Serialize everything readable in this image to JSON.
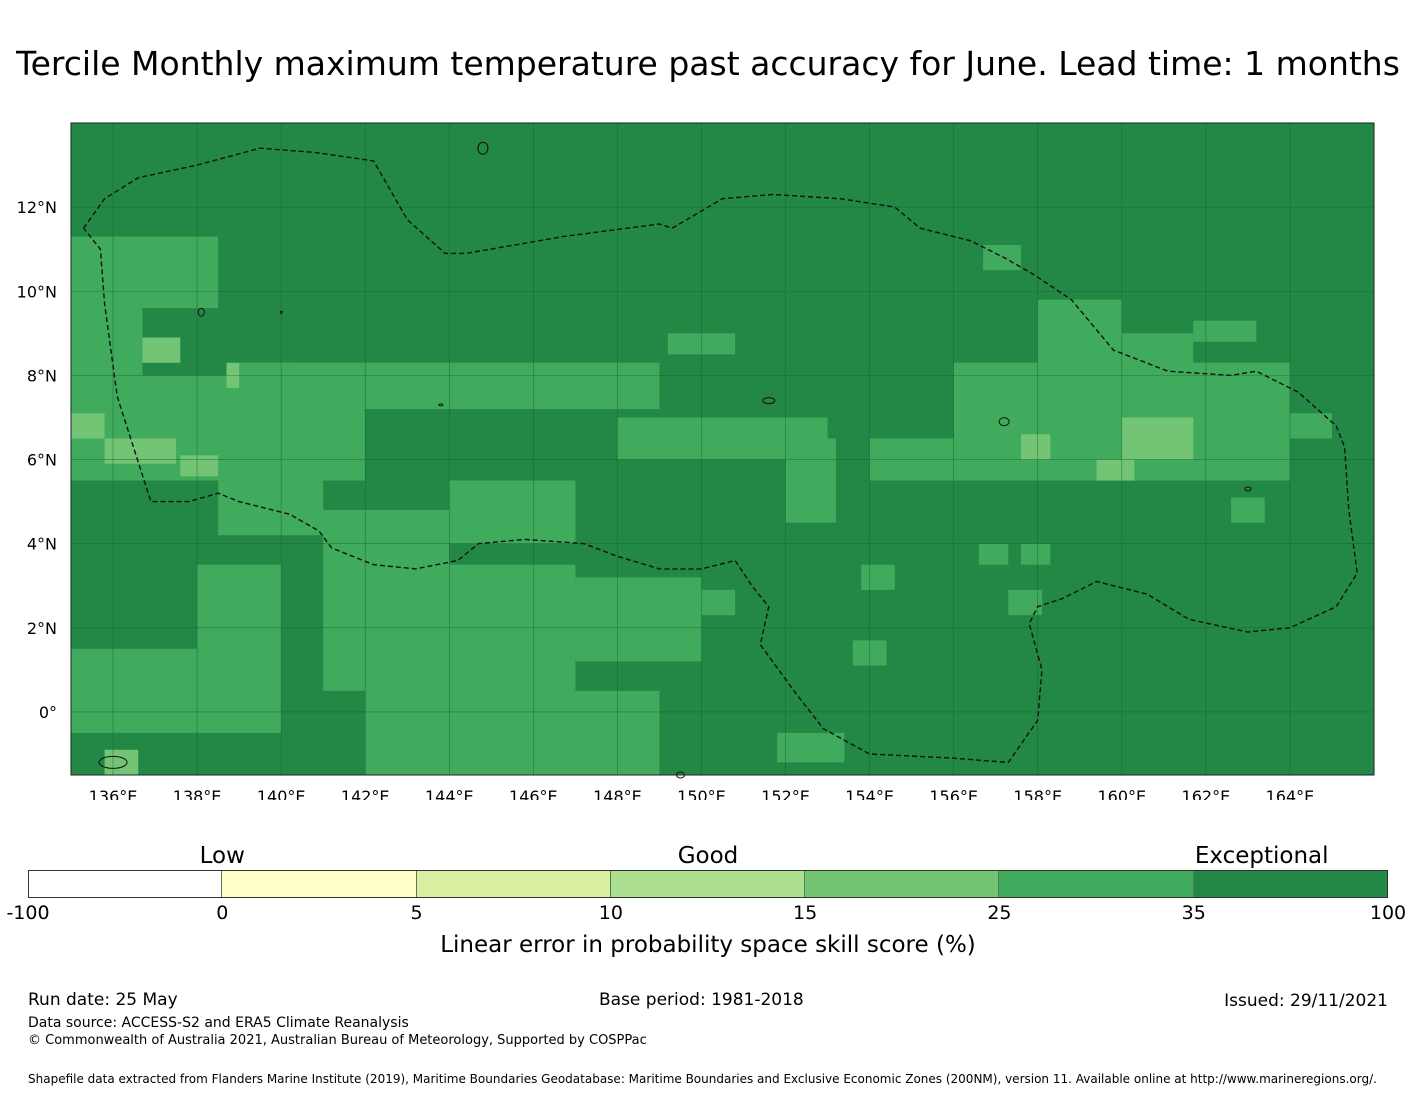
{
  "title": "Tercile Monthly maximum temperature past accuracy for June. Lead time: 1 months",
  "map": {
    "lon_range": [
      135,
      166
    ],
    "lat_range": [
      -1.5,
      14
    ],
    "lat_ticks": [
      {
        "value": 12,
        "label": "12°N"
      },
      {
        "value": 10,
        "label": "10°N"
      },
      {
        "value": 8,
        "label": "8°N"
      },
      {
        "value": 6,
        "label": "6°N"
      },
      {
        "value": 4,
        "label": "4°N"
      },
      {
        "value": 2,
        "label": "2°N"
      },
      {
        "value": 0,
        "label": "0°"
      }
    ],
    "lon_ticks": [
      {
        "value": 136,
        "label": "136°E"
      },
      {
        "value": 138,
        "label": "138°E"
      },
      {
        "value": 140,
        "label": "140°E"
      },
      {
        "value": 142,
        "label": "142°E"
      },
      {
        "value": 144,
        "label": "144°E"
      },
      {
        "value": 146,
        "label": "146°E"
      },
      {
        "value": 148,
        "label": "148°E"
      },
      {
        "value": 150,
        "label": "150°E"
      },
      {
        "value": 152,
        "label": "152°E"
      },
      {
        "value": 154,
        "label": "154°E"
      },
      {
        "value": 156,
        "label": "156°E"
      },
      {
        "value": 158,
        "label": "158°E"
      },
      {
        "value": 160,
        "label": "160°E"
      },
      {
        "value": 162,
        "label": "162°E"
      },
      {
        "value": 164,
        "label": "164°E"
      }
    ],
    "colors": {
      "exceptional": "#238845",
      "high": "#40ab5d",
      "mid": "#74c476",
      "good": "#addf91",
      "low": "#d9f0a3",
      "very_low": "#ffffcc",
      "none": "#ffffff"
    },
    "default_class": "exceptional",
    "cell_patches": [
      {
        "lon": [
          135,
          138.5
        ],
        "lat": [
          9.6,
          11.3
        ],
        "cls": "high"
      },
      {
        "lon": [
          135,
          136.7
        ],
        "lat": [
          8.0,
          9.6
        ],
        "cls": "high"
      },
      {
        "lon": [
          135,
          140
        ],
        "lat": [
          7.0,
          8.0
        ],
        "cls": "high"
      },
      {
        "lon": [
          135,
          141
        ],
        "lat": [
          5.5,
          7.0
        ],
        "cls": "high"
      },
      {
        "lon": [
          136.7,
          137.6
        ],
        "lat": [
          8.3,
          8.9
        ],
        "cls": "mid"
      },
      {
        "lon": [
          138.7,
          140.4
        ],
        "lat": [
          7.7,
          8.3
        ],
        "cls": "mid"
      },
      {
        "lon": [
          135,
          135.8
        ],
        "lat": [
          6.5,
          7.1
        ],
        "cls": "mid"
      },
      {
        "lon": [
          135.8,
          137.5
        ],
        "lat": [
          5.9,
          6.5
        ],
        "cls": "mid"
      },
      {
        "lon": [
          137.6,
          138.5
        ],
        "lat": [
          5.6,
          6.1
        ],
        "cls": "mid"
      },
      {
        "lon": [
          138.5,
          141
        ],
        "lat": [
          4.2,
          5.6
        ],
        "cls": "high"
      },
      {
        "lon": [
          139,
          149
        ],
        "lat": [
          7.2,
          8.3
        ],
        "cls": "high"
      },
      {
        "lon": [
          140,
          142
        ],
        "lat": [
          5.5,
          7.2
        ],
        "cls": "high"
      },
      {
        "lon": [
          141,
          144
        ],
        "lat": [
          3.4,
          4.8
        ],
        "cls": "high"
      },
      {
        "lon": [
          141,
          147
        ],
        "lat": [
          0.5,
          3.5
        ],
        "cls": "high"
      },
      {
        "lon": [
          138,
          140
        ],
        "lat": [
          -0.5,
          3.5
        ],
        "cls": "high"
      },
      {
        "lon": [
          135,
          138
        ],
        "lat": [
          -0.5,
          1.5
        ],
        "cls": "high"
      },
      {
        "lon": [
          142,
          149
        ],
        "lat": [
          -1.5,
          0.5
        ],
        "cls": "high"
      },
      {
        "lon": [
          144,
          147
        ],
        "lat": [
          4.0,
          5.5
        ],
        "cls": "high"
      },
      {
        "lon": [
          147,
          150
        ],
        "lat": [
          1.2,
          3.2
        ],
        "cls": "high"
      },
      {
        "lon": [
          148,
          153
        ],
        "lat": [
          6.0,
          7.0
        ],
        "cls": "high"
      },
      {
        "lon": [
          149.2,
          150.8
        ],
        "lat": [
          8.5,
          9.0
        ],
        "cls": "high"
      },
      {
        "lon": [
          152,
          153.2
        ],
        "lat": [
          4.5,
          6.5
        ],
        "cls": "high"
      },
      {
        "lon": [
          154,
          156
        ],
        "lat": [
          5.5,
          6.5
        ],
        "cls": "high"
      },
      {
        "lon": [
          156,
          164
        ],
        "lat": [
          5.5,
          8.3
        ],
        "cls": "high"
      },
      {
        "lon": [
          158,
          160
        ],
        "lat": [
          8.0,
          9.8
        ],
        "cls": "high"
      },
      {
        "lon": [
          160,
          161.7
        ],
        "lat": [
          8.0,
          9.0
        ],
        "cls": "high"
      },
      {
        "lon": [
          161.7,
          163.2
        ],
        "lat": [
          8.8,
          9.3
        ],
        "cls": "high"
      },
      {
        "lon": [
          156.7,
          157.6
        ],
        "lat": [
          10.5,
          11.1
        ],
        "cls": "high"
      },
      {
        "lon": [
          163.2,
          165
        ],
        "lat": [
          6.5,
          7.1
        ],
        "cls": "high"
      },
      {
        "lon": [
          162.6,
          163.4
        ],
        "lat": [
          4.5,
          5.1
        ],
        "cls": "high"
      },
      {
        "lon": [
          160.0,
          161.7
        ],
        "lat": [
          6.0,
          7.0
        ],
        "cls": "mid"
      },
      {
        "lon": [
          159.4,
          160.3
        ],
        "lat": [
          5.5,
          6.0
        ],
        "cls": "mid"
      },
      {
        "lon": [
          157.6,
          158.3
        ],
        "lat": [
          6.0,
          6.6
        ],
        "cls": "mid"
      },
      {
        "lon": [
          153.8,
          154.6
        ],
        "lat": [
          2.9,
          3.5
        ],
        "cls": "high"
      },
      {
        "lon": [
          156.6,
          157.3
        ],
        "lat": [
          3.5,
          4.0
        ],
        "cls": "high"
      },
      {
        "lon": [
          157.6,
          158.3
        ],
        "lat": [
          3.5,
          4.0
        ],
        "cls": "high"
      },
      {
        "lon": [
          157.3,
          158.1
        ],
        "lat": [
          2.3,
          2.9
        ],
        "cls": "high"
      },
      {
        "lon": [
          150.0,
          150.8
        ],
        "lat": [
          2.3,
          2.9
        ],
        "cls": "high"
      },
      {
        "lon": [
          153.6,
          154.4
        ],
        "lat": [
          1.1,
          1.7
        ],
        "cls": "high"
      },
      {
        "lon": [
          151.8,
          153.4
        ],
        "lat": [
          -1.2,
          -0.5
        ],
        "cls": "high"
      },
      {
        "lon": [
          135.8,
          136.6
        ],
        "lat": [
          -1.5,
          -0.9
        ],
        "cls": "mid"
      }
    ]
  },
  "colorbar": {
    "categories": [
      {
        "label": "Low",
        "at": 1
      },
      {
        "label": "Good",
        "at": 3.5
      },
      {
        "label": "Exceptional",
        "at": 6.35
      }
    ],
    "segments": [
      {
        "color": "#ffffff"
      },
      {
        "color": "#ffffcc"
      },
      {
        "color": "#d9f0a3"
      },
      {
        "color": "#addf91"
      },
      {
        "color": "#74c476"
      },
      {
        "color": "#40ab5d"
      },
      {
        "color": "#238845"
      }
    ],
    "ticks": [
      "-100",
      "0",
      "5",
      "10",
      "15",
      "25",
      "35",
      "100"
    ],
    "label": "Linear error in probability space skill score (%)"
  },
  "footer": {
    "run_date": "Run date: 25 May",
    "base_period": "Base period: 1981-2018",
    "issued": "Issued: 29/11/2021",
    "data_source": "Data source: ACCESS-S2 and ERA5 Climate Reanalysis",
    "copyright": "© Commonwealth of Australia 2021, Australian Bureau of Meteorology, Supported by COSPPac",
    "shapefile": "Shapefile data extracted from Flanders Marine Institute (2019), Maritime Boundaries Geodatabase: Maritime Boundaries and Exclusive Economic Zones (200NM), version 11. Available online at http://www.marineregions.org/."
  }
}
